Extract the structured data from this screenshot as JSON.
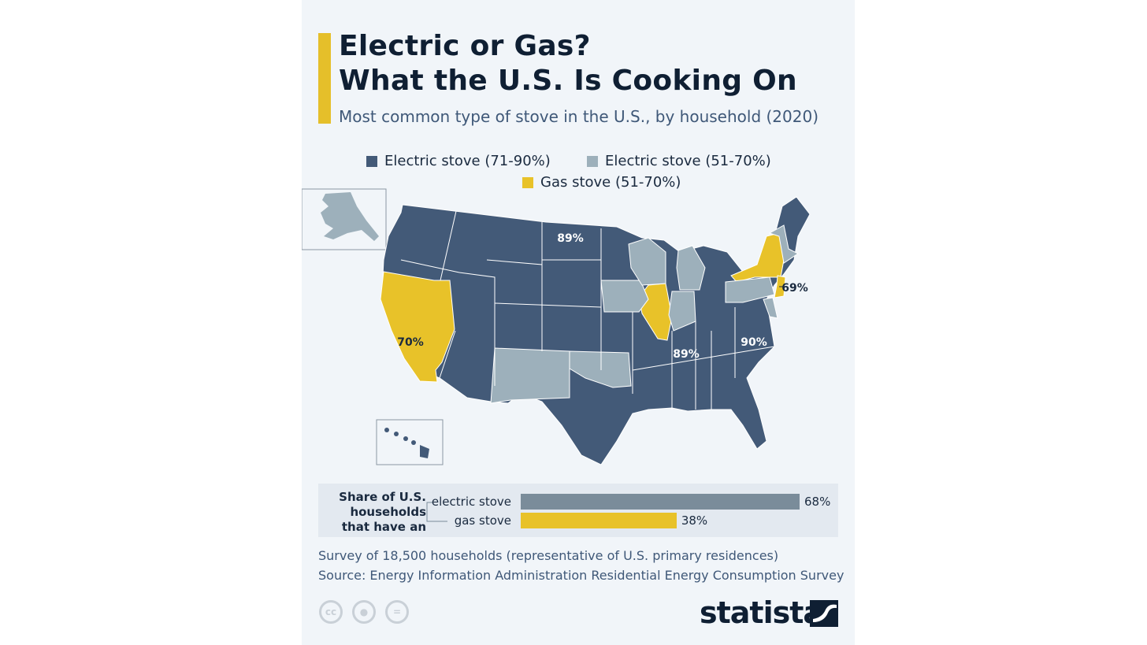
{
  "title_line1": "Electric or Gas?",
  "title_line2": "What the U.S. Is Cooking On",
  "subtitle": "Most common type of stove in the U.S., by household (2020)",
  "legend": [
    {
      "label": "Electric stove (71-90%)",
      "color": "#435a78"
    },
    {
      "label": "Electric stove (51-70%)",
      "color": "#9db0bb"
    },
    {
      "label": "Gas stove (51-70%)",
      "color": "#e8c229"
    }
  ],
  "map_labels": {
    "north_dakota": "89%",
    "california": "70%",
    "new_jersey": "69%",
    "tennessee": "89%",
    "north_carolina": "90%"
  },
  "bar_section": {
    "heading": "Share of U.S. households that have an",
    "bars": [
      {
        "label": "electric stove",
        "value": 68,
        "value_label": "68%",
        "color": "#7a8c9a"
      },
      {
        "label": "gas stove",
        "value": 38,
        "value_label": "38%",
        "color": "#e8c229"
      }
    ]
  },
  "note": "Survey of 18,500 households (representative of U.S. primary residences)",
  "source": "Source: Energy Information Administration Residential Energy Consumption Survey",
  "license_icons": [
    "cc-icon",
    "by-icon",
    "nd-icon"
  ],
  "brand": "statista"
}
